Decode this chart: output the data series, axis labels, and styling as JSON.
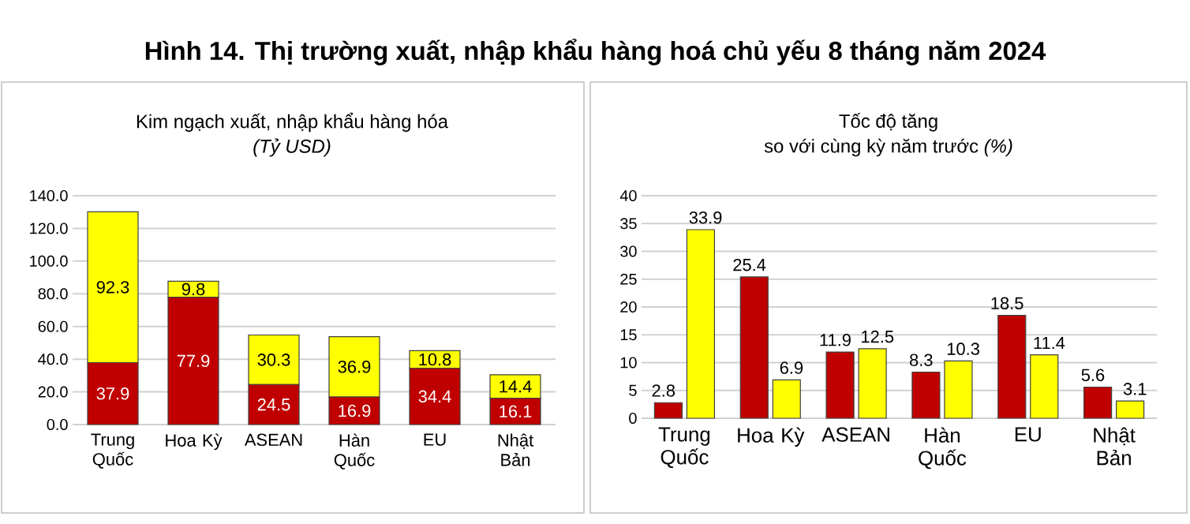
{
  "chart_data": [
    {
      "type": "bar",
      "stacked": true,
      "title": "Kim ngạch xuất, nhập khẩu hàng hóa",
      "subtitle": "(Tỷ USD)",
      "annotations": [
        "Hình 14. Thị trường xuất, nhập khẩu hàng hoá chủ yếu 8 tháng năm 2024"
      ],
      "categories": [
        "Trung Quốc",
        "Hoa Kỳ",
        "ASEAN",
        "Hàn Quốc",
        "EU",
        "Nhật Bản"
      ],
      "series": [
        {
          "color": "#c00000",
          "values": [
            37.9,
            77.9,
            24.5,
            16.9,
            34.4,
            16.1
          ]
        },
        {
          "color": "#ffff00",
          "values": [
            92.3,
            9.8,
            30.3,
            36.9,
            10.8,
            14.4
          ]
        }
      ],
      "ylim": [
        0,
        140
      ],
      "yticks": [
        {
          "value": 0,
          "label": "0.0"
        },
        {
          "value": 20,
          "label": "20.0"
        },
        {
          "value": 40,
          "label": "40.0"
        },
        {
          "value": 60,
          "label": "60.0"
        },
        {
          "value": 80,
          "label": "80.0"
        },
        {
          "value": 100,
          "label": "100.0"
        },
        {
          "value": 120,
          "label": "120.0"
        },
        {
          "value": 140,
          "label": "140.0"
        }
      ],
      "grid": "y",
      "data_labels": true
    },
    {
      "type": "bar",
      "title": "Tốc độ tăng",
      "subtitle": "so với cùng kỳ năm trước *(%)*",
      "categories": [
        "Trung Quốc",
        "Hoa Kỳ",
        "ASEAN",
        "Hàn Quốc",
        "EU",
        "Nhật Bản"
      ],
      "series": [
        {
          "color": "#c00000",
          "values": [
            2.8,
            25.4,
            11.9,
            8.3,
            18.5,
            5.6
          ]
        },
        {
          "color": "#ffff00",
          "values": [
            33.9,
            6.9,
            12.5,
            10.3,
            11.4,
            3.1
          ]
        }
      ],
      "ylim": [
        0,
        40
      ],
      "yticks": [
        0,
        5,
        10,
        15,
        20,
        25,
        30,
        35,
        40
      ],
      "grid": "y",
      "data_labels": true
    }
  ]
}
